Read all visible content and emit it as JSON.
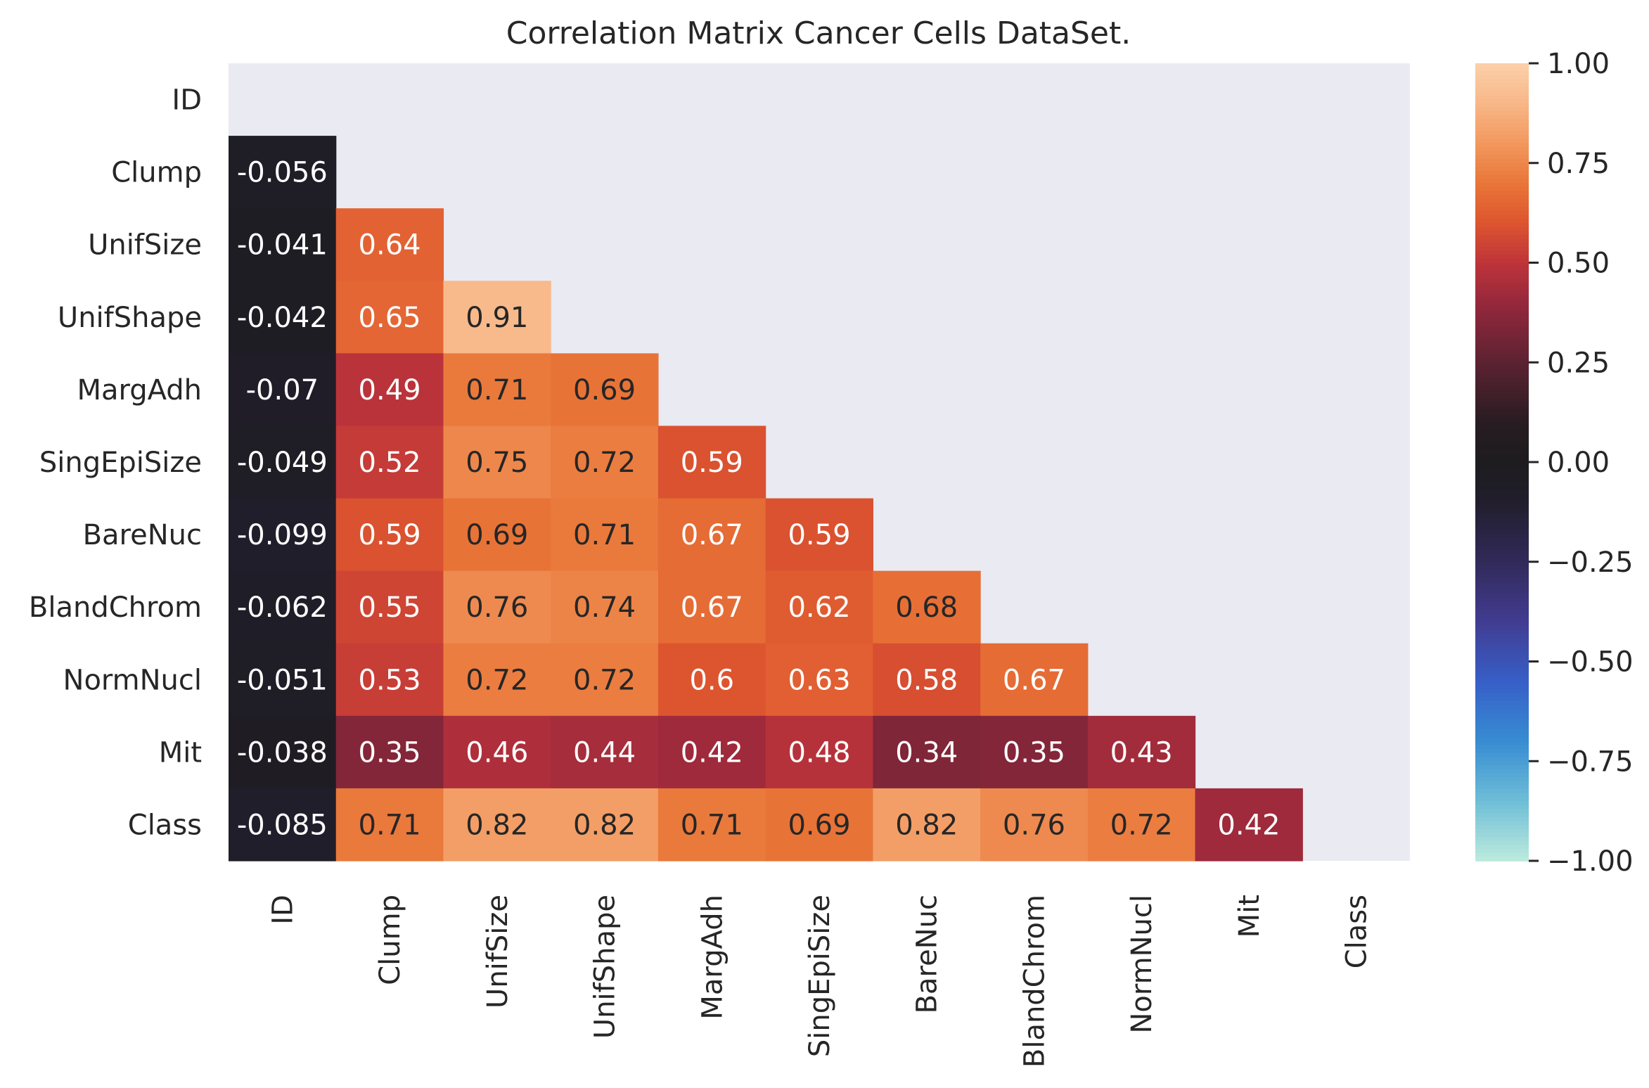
{
  "chart_data": {
    "type": "heatmap",
    "title": "Correlation Matrix Cancer Cells DataSet.",
    "labels": [
      "ID",
      "Clump",
      "UnifSize",
      "UnifShape",
      "MargAdh",
      "SingEpiSize",
      "BareNuc",
      "BlandChrom",
      "NormNucl",
      "Mit",
      "Class"
    ],
    "mask": "upper-triangle-and-diagonal",
    "rows": [
      [],
      [
        "-0.056"
      ],
      [
        "-0.041",
        "0.64"
      ],
      [
        "-0.042",
        "0.65",
        "0.91"
      ],
      [
        "-0.07",
        "0.49",
        "0.71",
        "0.69"
      ],
      [
        "-0.049",
        "0.52",
        "0.75",
        "0.72",
        "0.59"
      ],
      [
        "-0.099",
        "0.59",
        "0.69",
        "0.71",
        "0.67",
        "0.59"
      ],
      [
        "-0.062",
        "0.55",
        "0.76",
        "0.74",
        "0.67",
        "0.62",
        "0.68"
      ],
      [
        "-0.051",
        "0.53",
        "0.72",
        "0.72",
        "0.6",
        "0.63",
        "0.58",
        "0.67"
      ],
      [
        "-0.038",
        "0.35",
        "0.46",
        "0.44",
        "0.42",
        "0.48",
        "0.34",
        "0.35",
        "0.43"
      ],
      [
        "-0.085",
        "0.71",
        "0.82",
        "0.82",
        "0.71",
        "0.69",
        "0.82",
        "0.76",
        "0.72",
        "0.42"
      ]
    ],
    "colorbar": {
      "vmin": -1.0,
      "vmax": 1.0,
      "ticks": [
        "1.00",
        "0.75",
        "0.50",
        "0.25",
        "0.00",
        "−0.25",
        "−0.50",
        "−0.75",
        "−1.00"
      ],
      "colormap": "icefire"
    },
    "masked_color": "#eaeaf2"
  }
}
